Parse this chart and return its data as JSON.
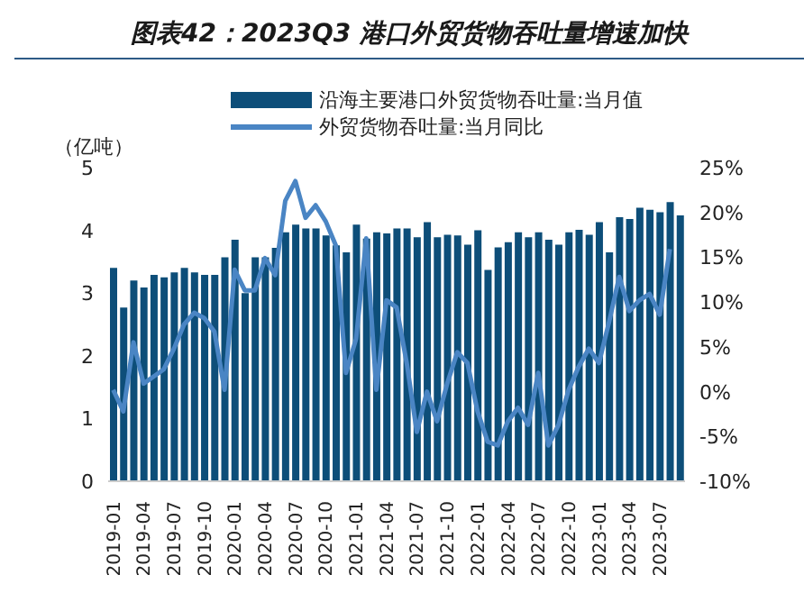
{
  "chart_data": {
    "type": "bar",
    "title": "图表42：2023Q3 港口外贸货物吞吐量增速加快",
    "ylabel": "（亿吨）",
    "categories": [
      "2019-01",
      null,
      null,
      "2019-04",
      null,
      null,
      "2019-07",
      null,
      null,
      "2019-10",
      null,
      null,
      "2020-01",
      null,
      null,
      "2020-04",
      null,
      null,
      "2020-07",
      null,
      null,
      "2020-10",
      null,
      null,
      "2021-01",
      null,
      null,
      "2021-04",
      null,
      null,
      "2021-07",
      null,
      null,
      "2021-10",
      null,
      null,
      "2022-01",
      null,
      null,
      "2022-04",
      null,
      null,
      "2022-07",
      null,
      null,
      "2022-10",
      null,
      null,
      "2023-01",
      null,
      null,
      "2023-04",
      null,
      null,
      "2023-07",
      null,
      null
    ],
    "series": [
      {
        "name": "沿海主要港口外贸货物吞吐量:当月值",
        "type": "bar",
        "color": "#0d4e79",
        "values": [
          3.4,
          2.77,
          3.2,
          3.09,
          3.29,
          3.25,
          3.33,
          3.4,
          3.33,
          3.29,
          3.29,
          3.57,
          3.85,
          3.0,
          3.57,
          3.57,
          3.72,
          3.97,
          4.09,
          4.03,
          4.03,
          3.92,
          3.76,
          3.65,
          4.09,
          3.87,
          3.97,
          3.95,
          4.03,
          4.03,
          3.89,
          4.13,
          3.89,
          3.93,
          3.92,
          3.77,
          4.0,
          3.37,
          3.73,
          3.81,
          3.97,
          3.89,
          3.97,
          3.85,
          3.77,
          3.97,
          4.01,
          3.93,
          4.13,
          3.65,
          4.21,
          4.18,
          4.36,
          4.33,
          4.29,
          4.45,
          4.24
        ]
      },
      {
        "name": "外贸货物吞吐量:当月同比",
        "type": "line",
        "axis": "y2",
        "color": "#4a85c4",
        "values": [
          0.2,
          -2.2,
          5.5,
          0.9,
          1.7,
          2.5,
          4.8,
          7.5,
          8.8,
          8.2,
          6.7,
          0.2,
          13.6,
          11.3,
          11.3,
          14.9,
          13,
          21.3,
          23.5,
          19.4,
          20.8,
          19,
          16.3,
          2.1,
          5.9,
          17.1,
          0.2,
          10.2,
          9.4,
          3.2,
          -4.5,
          0,
          -3.3,
          0.9,
          4.4,
          3.2,
          -2.2,
          -5.6,
          -6,
          -3.3,
          -1.8,
          -3.7,
          2.1,
          -6,
          -3.7,
          0.2,
          2.8,
          4.8,
          3.2,
          7.8,
          12.8,
          9,
          10.2,
          10.9,
          8.6,
          15.9,
          null
        ]
      }
    ],
    "ylim": [
      0,
      5
    ],
    "yticks": [
      0,
      1,
      2,
      3,
      4,
      5
    ],
    "y2lim": [
      -10,
      25
    ],
    "y2ticks": [
      {
        "value": -10,
        "label": "-10%"
      },
      {
        "value": -5,
        "label": "-5%"
      },
      {
        "value": 0,
        "label": "0%"
      },
      {
        "value": 5,
        "label": "5%"
      },
      {
        "value": 10,
        "label": "10%"
      },
      {
        "value": 15,
        "label": "15%"
      },
      {
        "value": 20,
        "label": "20%"
      },
      {
        "value": 25,
        "label": "25%"
      }
    ],
    "legend": "top",
    "grid": false,
    "marker": "none",
    "line_style": "solid"
  }
}
